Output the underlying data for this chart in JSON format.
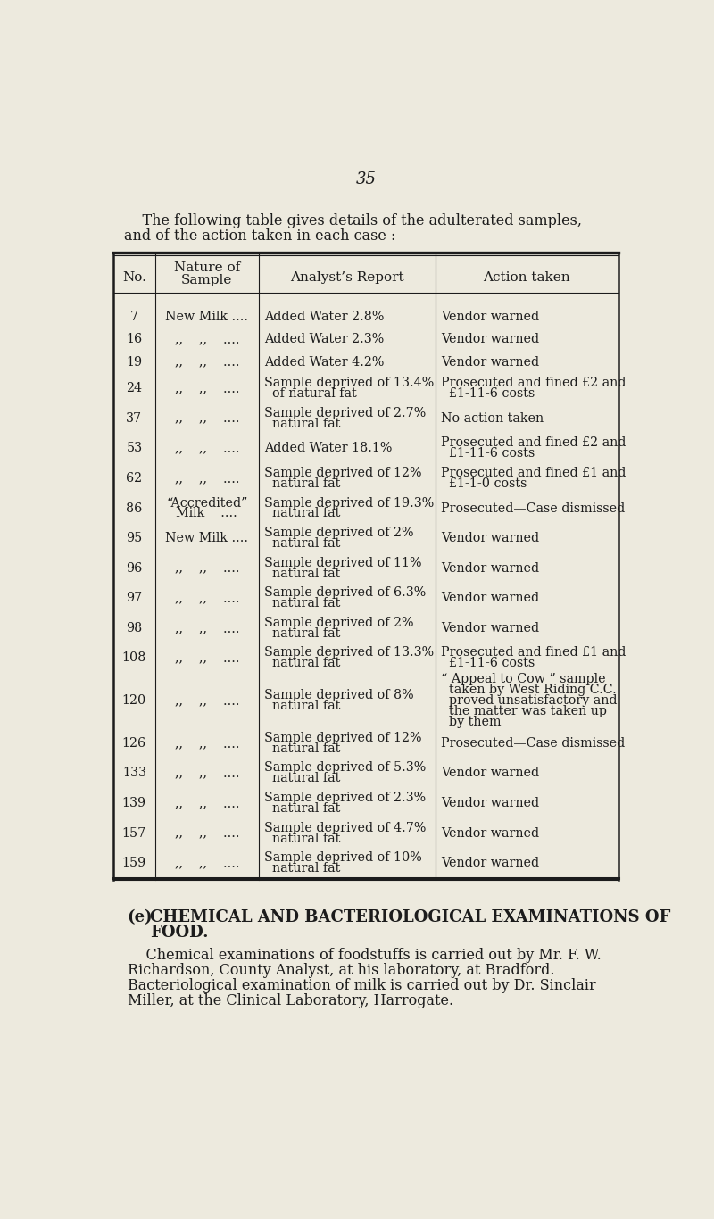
{
  "bg_color": "#edeade",
  "text_color": "#1c1c1c",
  "page_number": "35",
  "intro_line1": "    The following table gives details of the adulterated samples,",
  "intro_line2": "and of the action taken in each case :—",
  "col_headers_line1": [
    "No.",
    "Nature of",
    "Analyst’s Report",
    "Action taken"
  ],
  "col_headers_line2": [
    "",
    "Sample",
    "",
    ""
  ],
  "rows": [
    [
      "7",
      "New Milk ....",
      "Added Water 2.8%",
      "Vendor warned"
    ],
    [
      "16",
      ",,    ,,    ....",
      "Added Water 2.3%",
      "Vendor warned"
    ],
    [
      "19",
      ",,    ,,    ....",
      "Added Water 4.2%",
      "Vendor warned"
    ],
    [
      "24",
      ",,    ,,    ....",
      "Sample deprived of 13.4%\nof natural fat",
      "Prosecuted and fined £2 and\n£1-11-6 costs"
    ],
    [
      "37",
      ",,    ,,    ....",
      "Sample deprived of 2.7%\nnatural fat",
      "No action taken"
    ],
    [
      "53",
      ",,    ,,    ....",
      "Added Water 18.1%",
      "Prosecuted and fined £2 and\n£1-11-6 costs"
    ],
    [
      "62",
      ",,    ,,    ....",
      "Sample deprived of 12%\nnatural fat",
      "Prosecuted and fined £1 and\n£1-1-0 costs"
    ],
    [
      "86",
      "“Accredited”\nMilk    ....",
      "Sample deprived of 19.3%\nnatural fat",
      "Prosecuted—Case dismissed"
    ],
    [
      "95",
      "New Milk ....",
      "Sample deprived of 2%\nnatural fat",
      "Vendor warned"
    ],
    [
      "96",
      ",,    ,,    ....",
      "Sample deprived of 11%\nnatural fat",
      "Vendor warned"
    ],
    [
      "97",
      ",,    ,,    ....",
      "Sample deprived of 6.3%\nnatural fat",
      "Vendor warned"
    ],
    [
      "98",
      ",,    ,,    ....",
      "Sample deprived of 2%\nnatural fat",
      "Vendor warned"
    ],
    [
      "108",
      ",,    ,,    ....",
      "Sample deprived of 13.3%\nnatural fat",
      "Prosecuted and fined £1 and\n£1-11-6 costs"
    ],
    [
      "120",
      ",,    ,,    ....",
      "Sample deprived of 8%\nnatural fat",
      "“ Appeal to Cow ” sample\ntaken by West Riding C.C.\nproved unsatisfactory and\nthe matter was taken up\nby them"
    ],
    [
      "126",
      ",,    ,,    ....",
      "Sample deprived of 12%\nnatural fat",
      "Prosecuted—Case dismissed"
    ],
    [
      "133",
      ",,    ,,    ....",
      "Sample deprived of 5.3%\nnatural fat",
      "Vendor warned"
    ],
    [
      "139",
      ",,    ,,    ....",
      "Sample deprived of 2.3%\nnatural fat",
      "Vendor warned"
    ],
    [
      "157",
      ",,    ,,    ....",
      "Sample deprived of 4.7%\nnatural fat",
      "Vendor warned"
    ],
    [
      "159",
      ",,    ,,    ....",
      "Sample deprived of 10%\nnatural fat",
      "Vendor warned"
    ]
  ],
  "footer_heading_e": "(e)",
  "footer_heading_main": "  CHEMICAL AND BACTERIOLOGICAL EXAMINATIONS OF",
  "footer_heading_food": "FOOD.",
  "footer_para": "    Chemical examinations of foodstuffs is carried out by Mr. F. W.\nRichardson, County Analyst, at his laboratory, at Bradford.\nBacteriological examination of milk is carried out by Dr. Sinclair\nMiller, at the Clinical Laboratory, Harrogate."
}
